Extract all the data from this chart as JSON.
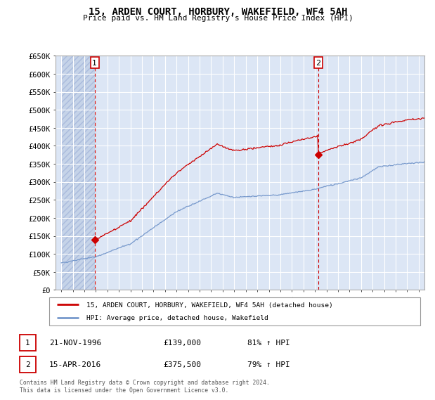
{
  "title": "15, ARDEN COURT, HORBURY, WAKEFIELD, WF4 5AH",
  "subtitle": "Price paid vs. HM Land Registry's House Price Index (HPI)",
  "ylim": [
    0,
    650000
  ],
  "yticks": [
    0,
    50000,
    100000,
    150000,
    200000,
    250000,
    300000,
    350000,
    400000,
    450000,
    500000,
    550000,
    600000,
    650000
  ],
  "ytick_labels": [
    "£0",
    "£50K",
    "£100K",
    "£150K",
    "£200K",
    "£250K",
    "£300K",
    "£350K",
    "£400K",
    "£450K",
    "£500K",
    "£550K",
    "£600K",
    "£650K"
  ],
  "hpi_color": "#7799cc",
  "property_color": "#cc0000",
  "sale1_date": 1996.9,
  "sale1_price": 139000,
  "sale2_date": 2016.29,
  "sale2_price": 375500,
  "legend_property": "15, ARDEN COURT, HORBURY, WAKEFIELD, WF4 5AH (detached house)",
  "legend_hpi": "HPI: Average price, detached house, Wakefield",
  "table_row1": [
    "1",
    "21-NOV-1996",
    "£139,000",
    "81% ↑ HPI"
  ],
  "table_row2": [
    "2",
    "15-APR-2016",
    "£375,500",
    "79% ↑ HPI"
  ],
  "footnote": "Contains HM Land Registry data © Crown copyright and database right 2024.\nThis data is licensed under the Open Government Licence v3.0.",
  "background_color": "#dce6f5",
  "hatch_color": "#c5d3e8",
  "grid_color": "#ffffff",
  "xlim_start": 1993.5,
  "xlim_end": 2025.5,
  "xticks": [
    1994,
    1995,
    1996,
    1997,
    1998,
    1999,
    2000,
    2001,
    2002,
    2003,
    2004,
    2005,
    2006,
    2007,
    2008,
    2009,
    2010,
    2011,
    2012,
    2013,
    2014,
    2015,
    2016,
    2017,
    2018,
    2019,
    2020,
    2021,
    2022,
    2023,
    2024,
    2025
  ]
}
